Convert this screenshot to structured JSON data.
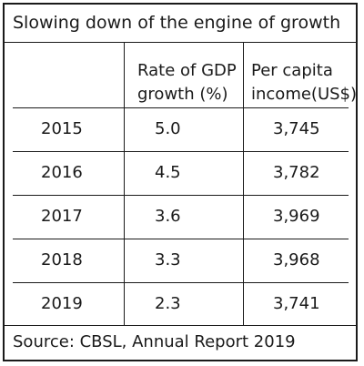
{
  "title": "Slowing down of the engine of growth",
  "headers": {
    "year": "",
    "gdp_line1": "Rate of GDP",
    "gdp_line2": "growth (%)",
    "pci_line1": "Per capita",
    "pci_line2": "income(US$)"
  },
  "rows": [
    {
      "year": "2015",
      "gdp": "5.0",
      "pci": "3,745"
    },
    {
      "year": "2016",
      "gdp": "4.5",
      "pci": "3,782"
    },
    {
      "year": "2017",
      "gdp": "3.6",
      "pci": "3,969"
    },
    {
      "year": "2018",
      "gdp": "3.3",
      "pci": "3,968"
    },
    {
      "year": "2019",
      "gdp": "2.3",
      "pci": "3,741"
    }
  ],
  "source": "Source: CBSL, Annual Report 2019"
}
